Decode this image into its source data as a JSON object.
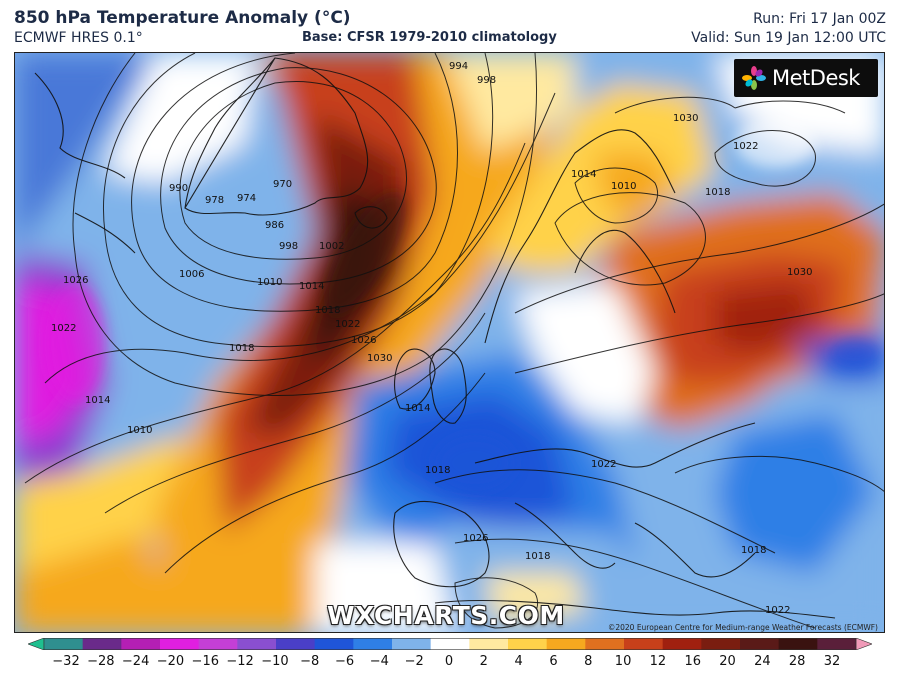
{
  "header": {
    "title": "850 hPa Temperature Anomaly (°C)",
    "model": "ECMWF HRES 0.1°",
    "base": "Base: CFSR 1979-2010 climatology",
    "run": "Run: Fri 17 Jan 00Z",
    "valid": "Valid: Sun 19 Jan 12:00 UTC"
  },
  "branding": {
    "logo_text": "MetDesk",
    "watermark": "WXCHARTS.COM",
    "copyright": "©2020 European Centre for Medium-range Weather Forecasts (ECMWF)"
  },
  "map": {
    "isobar_labels": [
      "994",
      "998",
      "970",
      "974",
      "978",
      "986",
      "990",
      "998",
      "1002",
      "1006",
      "1010",
      "1014",
      "1018",
      "1022",
      "1026",
      "1030",
      "1010",
      "1014",
      "1018",
      "1022",
      "1026",
      "1030",
      "1022",
      "1014",
      "1018",
      "1010",
      "1014",
      "1018",
      "1022",
      "1026",
      "1030",
      "1018",
      "1022",
      "1018"
    ]
  },
  "colorbar": {
    "ticks": [
      "−32",
      "−28",
      "−24",
      "−20",
      "−16",
      "−12",
      "−10",
      "−8",
      "−6",
      "−4",
      "−2",
      "0",
      "2",
      "4",
      "6",
      "8",
      "10",
      "12",
      "16",
      "20",
      "24",
      "28",
      "32"
    ],
    "colors": [
      "#1fbf8f",
      "#2f8f8f",
      "#6a2a8a",
      "#b41fb4",
      "#e01fe0",
      "#c43fd6",
      "#8a4fd0",
      "#4a3fc8",
      "#1f55d8",
      "#2f7fe6",
      "#7fb3ea",
      "#ffffff",
      "#ffe9a0",
      "#ffd24a",
      "#f6a81f",
      "#e0701f",
      "#c8401a",
      "#a0200f",
      "#7a1d10",
      "#5a1a18",
      "#3a1210",
      "#5a1f3a",
      "#f09ab8"
    ]
  }
}
